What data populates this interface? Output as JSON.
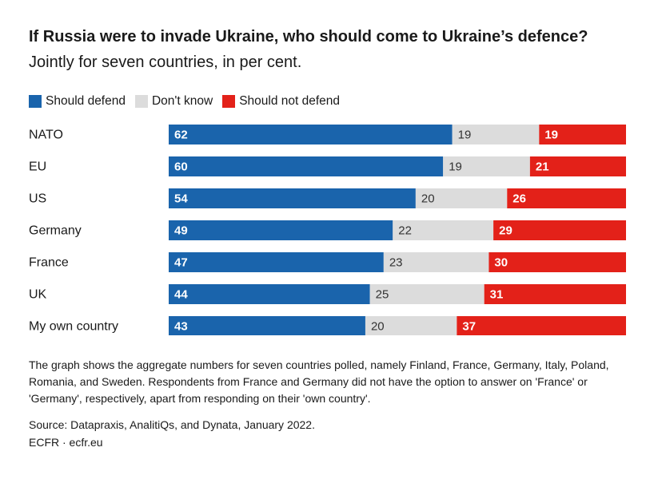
{
  "title_bold": "If Russia were to invade Ukraine, who should come to Ukraine’s defence?",
  "title_rest": " Jointly for seven countries, in per cent.",
  "colors": {
    "defend": "#1a64ac",
    "dont_know": "#dcdcdc",
    "not_defend": "#e32119"
  },
  "chart_data": {
    "type": "bar",
    "stacked": true,
    "orientation": "horizontal",
    "title": "If Russia were to invade Ukraine, who should come to Ukraine’s defence? Jointly for seven countries, in per cent.",
    "categories": [
      "NATO",
      "EU",
      "US",
      "Germany",
      "France",
      "UK",
      "My own country"
    ],
    "series": [
      {
        "name": "Should defend",
        "values": [
          62,
          60,
          54,
          49,
          47,
          44,
          43
        ]
      },
      {
        "name": "Don't know",
        "values": [
          19,
          19,
          20,
          22,
          23,
          25,
          20
        ]
      },
      {
        "name": "Should not defend",
        "values": [
          19,
          21,
          26,
          29,
          30,
          31,
          37
        ]
      }
    ],
    "xlim": [
      0,
      100
    ],
    "legend": "top-left"
  },
  "note": "The graph shows the aggregate numbers for seven countries polled, namely Finland, France, Germany, Italy, Poland, Romania, and Sweden. Respondents from France and Germany did not have the option to answer on 'France' or 'Germany', respectively, apart from responding on their 'own country'.",
  "source": "Source: Datapraxis, AnalitiQs, and Dynata, January 2022.",
  "credit": "ECFR · ecfr.eu"
}
